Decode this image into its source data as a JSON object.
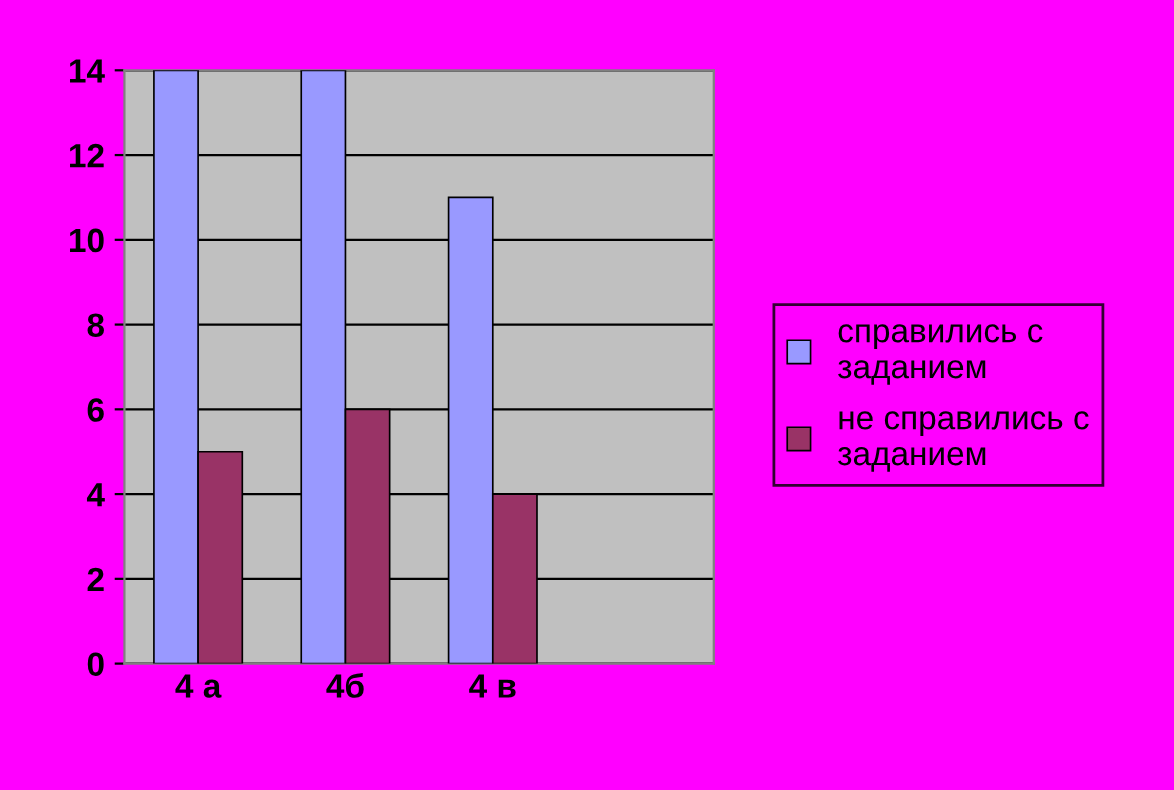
{
  "chart_data": {
    "type": "bar",
    "categories": [
      "4 а",
      "4б",
      "4 в",
      null
    ],
    "series": [
      {
        "name": "справились с заданием",
        "color": "#9999ff",
        "values": [
          14,
          14,
          11,
          null
        ]
      },
      {
        "name": "не справились с заданием",
        "color": "#993366",
        "values": [
          5,
          6,
          4,
          null
        ]
      }
    ],
    "ylim": [
      0,
      14
    ],
    "yticks": [
      0,
      2,
      4,
      6,
      8,
      10,
      12,
      14
    ],
    "grid": "y",
    "legend": "right"
  }
}
